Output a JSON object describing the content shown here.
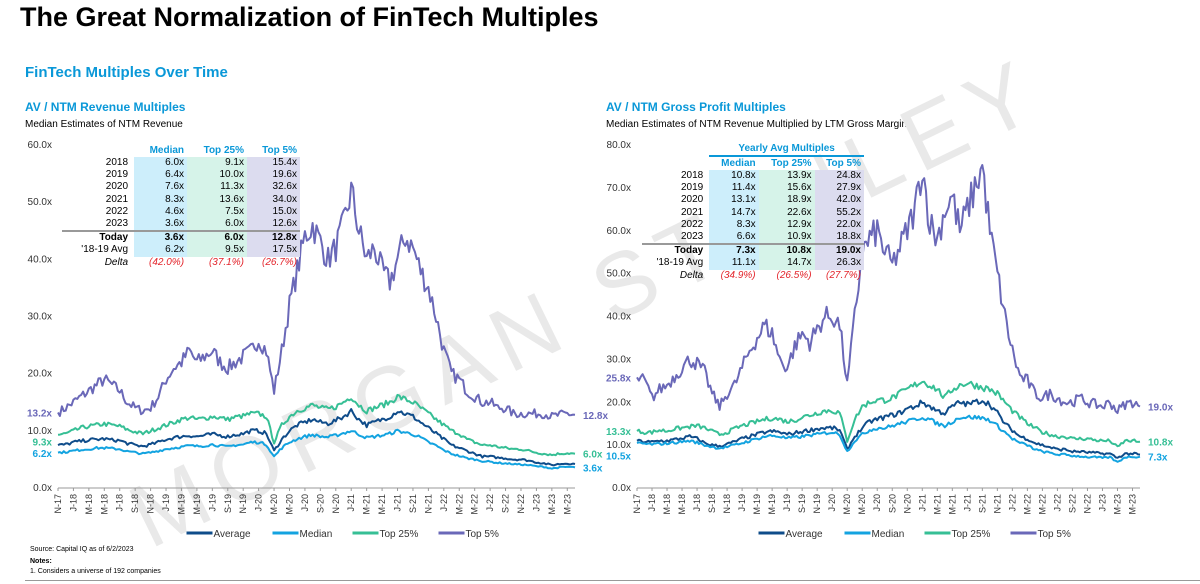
{
  "title": "The Great Normalization of FinTech Multiples",
  "section_title": "FinTech Multiples Over Time",
  "watermark": "MORGAN STANLEY",
  "footer": {
    "source": "Source: Capital IQ as of 6/2/2023",
    "notes_label": "Notes:",
    "note1": "1.  Considers a universe of 192 companies"
  },
  "colors": {
    "Average": "#0f4c8a",
    "Median": "#13a3e0",
    "Top 25%": "#36bf95",
    "Top 5%": "#6a68b8"
  },
  "left": {
    "title": "AV / NTM Revenue Multiples",
    "subtitle": "Median Estimates of NTM Revenue",
    "table": {
      "header_group": "",
      "columns": [
        "Median",
        "Top 25%",
        "Top 5%"
      ],
      "rows": [
        [
          "2018",
          "6.0x",
          "9.1x",
          "15.4x"
        ],
        [
          "2019",
          "6.4x",
          "10.0x",
          "19.6x"
        ],
        [
          "2020",
          "7.6x",
          "11.3x",
          "32.6x"
        ],
        [
          "2021",
          "8.3x",
          "13.6x",
          "34.0x"
        ],
        [
          "2022",
          "4.6x",
          "7.5x",
          "15.0x"
        ],
        [
          "2023",
          "3.6x",
          "6.0x",
          "12.6x"
        ]
      ],
      "today": [
        "Today",
        "3.6x",
        "6.0x",
        "12.8x"
      ],
      "avg": [
        "'18-19 Avg",
        "6.2x",
        "9.5x",
        "17.5x"
      ],
      "delta": [
        "Delta",
        "(42.0%)",
        "(37.1%)",
        "(26.7%)"
      ]
    },
    "start_labels": {
      "Top 5%": "13.2x",
      "Top 25%": "9.3x",
      "Median": "6.2x"
    },
    "end_labels": {
      "Top 5%": "12.8x",
      "Top 25%": "6.0x",
      "Median": "3.6x"
    }
  },
  "right": {
    "title": "AV / NTM Gross Profit Multiples",
    "subtitle": "Median Estimates of NTM Revenue Multiplied by LTM Gross Margins",
    "table": {
      "header_group": "Yearly Avg Multiples",
      "columns": [
        "Median",
        "Top 25%",
        "Top 5%"
      ],
      "rows": [
        [
          "2018",
          "10.8x",
          "13.9x",
          "24.8x"
        ],
        [
          "2019",
          "11.4x",
          "15.6x",
          "27.9x"
        ],
        [
          "2020",
          "13.1x",
          "18.9x",
          "42.0x"
        ],
        [
          "2021",
          "14.7x",
          "22.6x",
          "55.2x"
        ],
        [
          "2022",
          "8.3x",
          "12.9x",
          "22.0x"
        ],
        [
          "2023",
          "6.6x",
          "10.9x",
          "18.8x"
        ]
      ],
      "today": [
        "Today",
        "7.3x",
        "10.8x",
        "19.0x"
      ],
      "avg": [
        "'18-19 Avg",
        "11.1x",
        "14.7x",
        "26.3x"
      ],
      "delta": [
        "Delta",
        "(34.9%)",
        "(26.5%)",
        "(27.7%)"
      ]
    },
    "start_labels": {
      "Top 5%": "25.8x",
      "Top 25%": "13.3x",
      "Median": "10.5x"
    },
    "end_labels": {
      "Top 5%": "19.0x",
      "Top 25%": "10.8x",
      "Median": "7.3x"
    }
  },
  "chart_data": [
    {
      "type": "line",
      "title": "AV / NTM Revenue Multiples",
      "ylim": [
        0,
        60
      ],
      "yticks": [
        "0.0x",
        "10.0x",
        "20.0x",
        "30.0x",
        "40.0x",
        "50.0x",
        "60.0x"
      ],
      "xticks": [
        "N-17",
        "J-18",
        "M-18",
        "M-18",
        "J-18",
        "S-18",
        "N-18",
        "J-19",
        "M-19",
        "M-19",
        "J-19",
        "S-19",
        "N-19",
        "J-20",
        "M-20",
        "M-20",
        "J-20",
        "S-20",
        "N-20",
        "J-21",
        "M-21",
        "M-21",
        "J-21",
        "S-21",
        "N-21",
        "J-22",
        "M-22",
        "M-22",
        "J-22",
        "S-22",
        "N-22",
        "J-23",
        "M-23",
        "M-23"
      ],
      "x_note": "monthly, Nov-2017 to Jun-2023 (approximate)",
      "legend": [
        "Average",
        "Median",
        "Top 25%",
        "Top 5%"
      ],
      "legend_position": "bottom",
      "series": [
        {
          "name": "Top 5%",
          "values": [
            13.2,
            14,
            15,
            16,
            17,
            18,
            19,
            18,
            17,
            15,
            14,
            13.5,
            14,
            16,
            19,
            21,
            22,
            24,
            22,
            23,
            24,
            22,
            21,
            22,
            23,
            24,
            26,
            24,
            17,
            24,
            32,
            38,
            44,
            46,
            43,
            40,
            42,
            46,
            52,
            45,
            40,
            42,
            38,
            36,
            40,
            44,
            42,
            38,
            35,
            30,
            24,
            20,
            19,
            17,
            16,
            15,
            15,
            14,
            14,
            13,
            13,
            13,
            13,
            13,
            12.5,
            12.8,
            13,
            12.8
          ]
        },
        {
          "name": "Top 25%",
          "values": [
            9.3,
            9.5,
            10,
            10.5,
            10.8,
            11,
            11.2,
            11,
            10.8,
            10.2,
            9.8,
            9.5,
            10,
            10.5,
            11,
            11.5,
            12,
            12.3,
            12,
            12.2,
            12.5,
            12.3,
            12,
            12.4,
            12.6,
            13,
            13,
            12.5,
            8,
            11,
            12.5,
            13.5,
            14,
            14.5,
            14,
            13.8,
            14.2,
            15,
            16,
            14.5,
            13.5,
            14,
            14.5,
            15,
            16,
            15.5,
            15,
            14,
            13,
            12,
            11,
            10,
            9.5,
            8.5,
            8,
            7.5,
            7.5,
            7.2,
            7,
            6.8,
            6.8,
            6.5,
            6.2,
            6,
            5.8,
            6,
            6.1,
            6.0
          ]
        },
        {
          "name": "Average",
          "values": [
            7.5,
            7.6,
            8,
            8.2,
            8.4,
            8.5,
            8.6,
            8.4,
            8.3,
            7.8,
            7.5,
            7.3,
            7.6,
            8,
            8.5,
            8.8,
            9,
            9.2,
            9,
            9.2,
            9.4,
            9.2,
            9,
            9.3,
            9.5,
            10,
            10,
            9.5,
            6.5,
            8.5,
            10,
            11,
            11.5,
            12,
            11.5,
            11.3,
            11.8,
            12.5,
            13.5,
            12,
            11,
            11.5,
            12,
            12.5,
            13.5,
            13,
            12.5,
            11.5,
            10.5,
            9.5,
            8.5,
            7.5,
            7,
            6.5,
            6,
            5.5,
            5.5,
            5.3,
            5.2,
            5,
            5,
            4.8,
            4.5,
            4.3,
            4,
            4.2,
            4.3,
            4.2
          ]
        },
        {
          "name": "Median",
          "values": [
            6.2,
            6.3,
            6.5,
            6.7,
            6.8,
            7,
            7,
            6.9,
            6.8,
            6.4,
            6.2,
            6,
            6.2,
            6.5,
            6.8,
            7,
            7.2,
            7.4,
            7.3,
            7.4,
            7.6,
            7.4,
            7.2,
            7.5,
            7.6,
            8,
            8,
            7.6,
            5.5,
            7,
            8,
            8.6,
            9,
            9.3,
            9,
            8.9,
            9.2,
            9.6,
            10,
            9.4,
            8.8,
            9,
            9.2,
            9.5,
            10,
            9.7,
            9.4,
            8.8,
            8,
            7.4,
            6.6,
            6,
            5.6,
            5.2,
            5,
            4.7,
            4.6,
            4.4,
            4.3,
            4.2,
            4.1,
            4,
            3.8,
            3.7,
            3.4,
            3.6,
            3.7,
            3.6
          ]
        }
      ]
    },
    {
      "type": "line",
      "title": "AV / NTM Gross Profit Multiples",
      "ylim": [
        0,
        80
      ],
      "yticks": [
        "0.0x",
        "10.0x",
        "20.0x",
        "30.0x",
        "40.0x",
        "50.0x",
        "60.0x",
        "70.0x",
        "80.0x"
      ],
      "xticks": [
        "N-17",
        "J-18",
        "M-18",
        "M-18",
        "J-18",
        "S-18",
        "N-18",
        "J-19",
        "M-19",
        "M-19",
        "J-19",
        "S-19",
        "N-19",
        "J-20",
        "M-20",
        "M-20",
        "J-20",
        "S-20",
        "N-20",
        "J-21",
        "M-21",
        "M-21",
        "J-21",
        "S-21",
        "N-21",
        "J-22",
        "M-22",
        "M-22",
        "J-22",
        "S-22",
        "N-22",
        "J-23",
        "M-23",
        "M-23"
      ],
      "x_note": "monthly, Nov-2017 to Jun-2023 (approximate)",
      "legend": [
        "Average",
        "Median",
        "Top 25%",
        "Top 5%"
      ],
      "legend_position": "bottom",
      "series": [
        {
          "name": "Top 5%",
          "values": [
            25.8,
            25,
            21,
            23,
            24,
            26,
            28,
            30,
            29,
            27,
            22,
            19,
            22,
            24,
            28,
            32,
            35,
            38,
            36,
            30,
            28,
            33,
            36,
            34,
            37,
            40,
            40,
            38,
            24,
            40,
            55,
            58,
            60,
            55,
            52,
            56,
            60,
            65,
            75,
            62,
            58,
            65,
            68,
            60,
            65,
            70,
            75,
            60,
            50,
            40,
            32,
            26,
            25,
            22,
            21,
            22,
            21,
            20,
            20,
            21,
            20,
            19.5,
            19,
            20,
            18,
            19.5,
            20,
            19
          ]
        },
        {
          "name": "Top 25%",
          "values": [
            13.3,
            13,
            13,
            13.5,
            13.3,
            13.8,
            14,
            14.3,
            14.5,
            14,
            13.2,
            12.5,
            13,
            13.8,
            14.5,
            15,
            15.5,
            16,
            16.3,
            16,
            15.5,
            15.8,
            16.5,
            17,
            17.5,
            18,
            18,
            17.5,
            11,
            16,
            19,
            20,
            20.5,
            20.5,
            21,
            22,
            23,
            24,
            25,
            24,
            23,
            21,
            23,
            24,
            24.5,
            24,
            23.5,
            23,
            22,
            20,
            18,
            16.5,
            15,
            14,
            13,
            12.5,
            12,
            12,
            11.5,
            11.5,
            11.5,
            11.2,
            11,
            11,
            9.5,
            11,
            11,
            10.8
          ]
        },
        {
          "name": "Average",
          "values": [
            11,
            10.8,
            10.7,
            11,
            11,
            11.3,
            11.6,
            12,
            11.5,
            10.5,
            10,
            9.8,
            10.2,
            10.8,
            11.5,
            12,
            12.5,
            13,
            13.2,
            13,
            12.5,
            12.8,
            13.2,
            13.5,
            13.8,
            14,
            14,
            13.5,
            9,
            12,
            14,
            15.5,
            16,
            16.5,
            17,
            17.5,
            18.5,
            19,
            20,
            19,
            18,
            17.5,
            19,
            20,
            19.5,
            20,
            20.5,
            19.5,
            17.5,
            15,
            13.5,
            12,
            11.5,
            10.5,
            10,
            9.5,
            9,
            9,
            8.5,
            8.5,
            8.3,
            8.2,
            8,
            8,
            7,
            8,
            8,
            7.8
          ]
        },
        {
          "name": "Median",
          "values": [
            10.5,
            10.3,
            10.2,
            10.3,
            10.4,
            10.6,
            10.8,
            11,
            10.6,
            10,
            9.6,
            9.3,
            9.6,
            10,
            10.5,
            11,
            11.5,
            12,
            12.2,
            12,
            11.6,
            11.8,
            12,
            12.3,
            12.5,
            12.8,
            13,
            12.5,
            8.5,
            11,
            12.5,
            13.5,
            14,
            14,
            14.5,
            15,
            15.5,
            16,
            16.5,
            16,
            15,
            14.5,
            15.5,
            16.5,
            16.5,
            16.5,
            16.3,
            15.8,
            14.5,
            13,
            11.5,
            10.5,
            10,
            9,
            8.5,
            8.2,
            7.8,
            7.8,
            7.5,
            7.4,
            7.2,
            7.2,
            7,
            7.2,
            6,
            7.2,
            7.3,
            7.3
          ]
        }
      ]
    }
  ]
}
